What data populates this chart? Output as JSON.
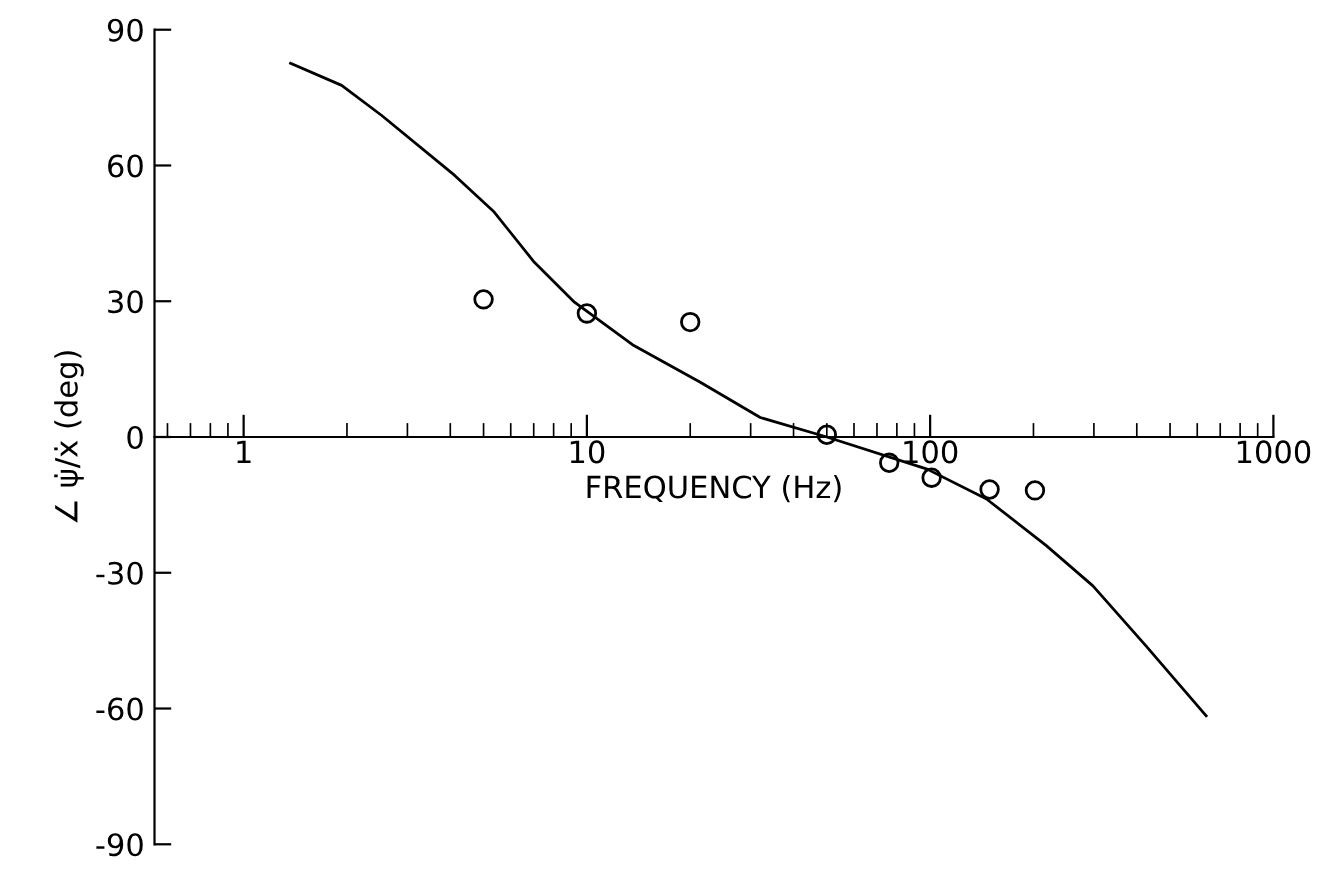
{
  "chart_data": {
    "type": "line",
    "xlabel": "FREQUENCY (Hz)",
    "ylabel": "∠ ψ̇/ẋ (deg)",
    "log": "x",
    "xlim": [
      0.55,
      1000
    ],
    "xticks": [
      1,
      10,
      100,
      1000
    ],
    "ylim": [
      -90,
      90
    ],
    "yticks": [
      -90,
      -60,
      -30,
      0,
      30,
      60,
      90
    ],
    "grid": false,
    "legend": false,
    "series": [
      {
        "color": "#000000",
        "marker": "none",
        "line_style": "solid",
        "x": [
          1.37,
          1.93,
          2.52,
          4.12,
          5.37,
          7.03,
          9.2,
          13.7,
          21.4,
          32,
          50,
          98,
          146,
          218,
          298,
          426,
          637
        ],
        "values": [
          82.6,
          77.7,
          71.1,
          57.8,
          49.7,
          38.6,
          29.8,
          20.2,
          12.1,
          4.3,
          0,
          -7.1,
          -13.7,
          -24,
          -32.9,
          -46.2,
          -61.6
        ]
      },
      {
        "type": "scatter",
        "color": "#000000",
        "marker": "circle",
        "x": [
          5.0,
          10,
          20,
          50,
          76,
          101,
          149,
          202
        ],
        "values": [
          30.4,
          27.3,
          25.4,
          0.5,
          -5.7,
          -9,
          -11.6,
          -11.8
        ]
      }
    ]
  }
}
